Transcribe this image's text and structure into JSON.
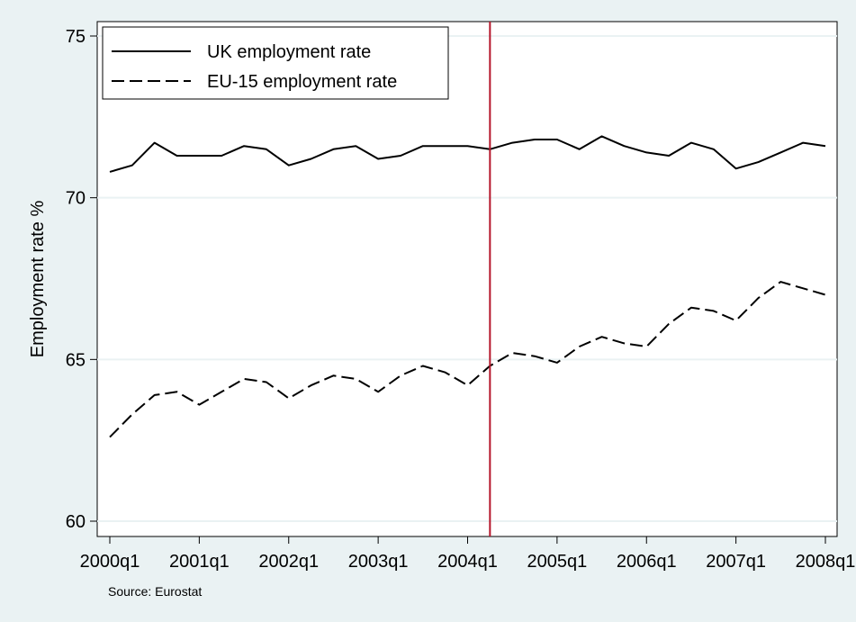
{
  "chart_data": {
    "type": "line",
    "ylabel": "Employment rate %",
    "note": "Source: Eurostat",
    "ylim": [
      60,
      75
    ],
    "yticks": [
      "60",
      "65",
      "70",
      "75"
    ],
    "xticks": [
      "2000q1",
      "2001q1",
      "2002q1",
      "2003q1",
      "2004q1",
      "2005q1",
      "2006q1",
      "2007q1",
      "2008q1"
    ],
    "x": [
      "2000q1",
      "2000q2",
      "2000q3",
      "2000q4",
      "2001q1",
      "2001q2",
      "2001q3",
      "2001q4",
      "2002q1",
      "2002q2",
      "2002q3",
      "2002q4",
      "2003q1",
      "2003q2",
      "2003q3",
      "2003q4",
      "2004q1",
      "2004q2",
      "2004q3",
      "2004q4",
      "2005q1",
      "2005q2",
      "2005q3",
      "2005q4",
      "2006q1",
      "2006q2",
      "2006q3",
      "2006q4",
      "2007q1",
      "2007q2",
      "2007q3",
      "2007q4",
      "2008q1"
    ],
    "series": [
      {
        "name": "UK employment rate",
        "style": "solid",
        "color": "#000000",
        "values": [
          70.8,
          71.0,
          71.7,
          71.3,
          71.3,
          71.3,
          71.6,
          71.5,
          71.0,
          71.2,
          71.5,
          71.6,
          71.2,
          71.3,
          71.6,
          71.6,
          71.6,
          71.5,
          71.7,
          71.8,
          71.8,
          71.5,
          71.9,
          71.6,
          71.4,
          71.3,
          71.7,
          71.5,
          70.9,
          71.1,
          71.4,
          71.7,
          71.6
        ]
      },
      {
        "name": "EU-15 employment rate",
        "style": "dashed",
        "color": "#000000",
        "values": [
          62.6,
          63.3,
          63.9,
          64.0,
          63.6,
          64.0,
          64.4,
          64.3,
          63.8,
          64.2,
          64.5,
          64.4,
          64.0,
          64.5,
          64.8,
          64.6,
          64.2,
          64.8,
          65.2,
          65.1,
          64.9,
          65.4,
          65.7,
          65.5,
          65.4,
          66.1,
          66.6,
          66.5,
          66.2,
          66.9,
          67.4,
          67.2,
          67.0
        ]
      }
    ],
    "reference_line": {
      "x": "2004q2",
      "color": "#b5172b"
    },
    "legend_position": "top-left",
    "grid": true,
    "colors": {
      "background": "#eaf2f3",
      "plot_area": "#ffffff",
      "grid": "#eaf2f3",
      "reference": "#b5172b"
    }
  }
}
